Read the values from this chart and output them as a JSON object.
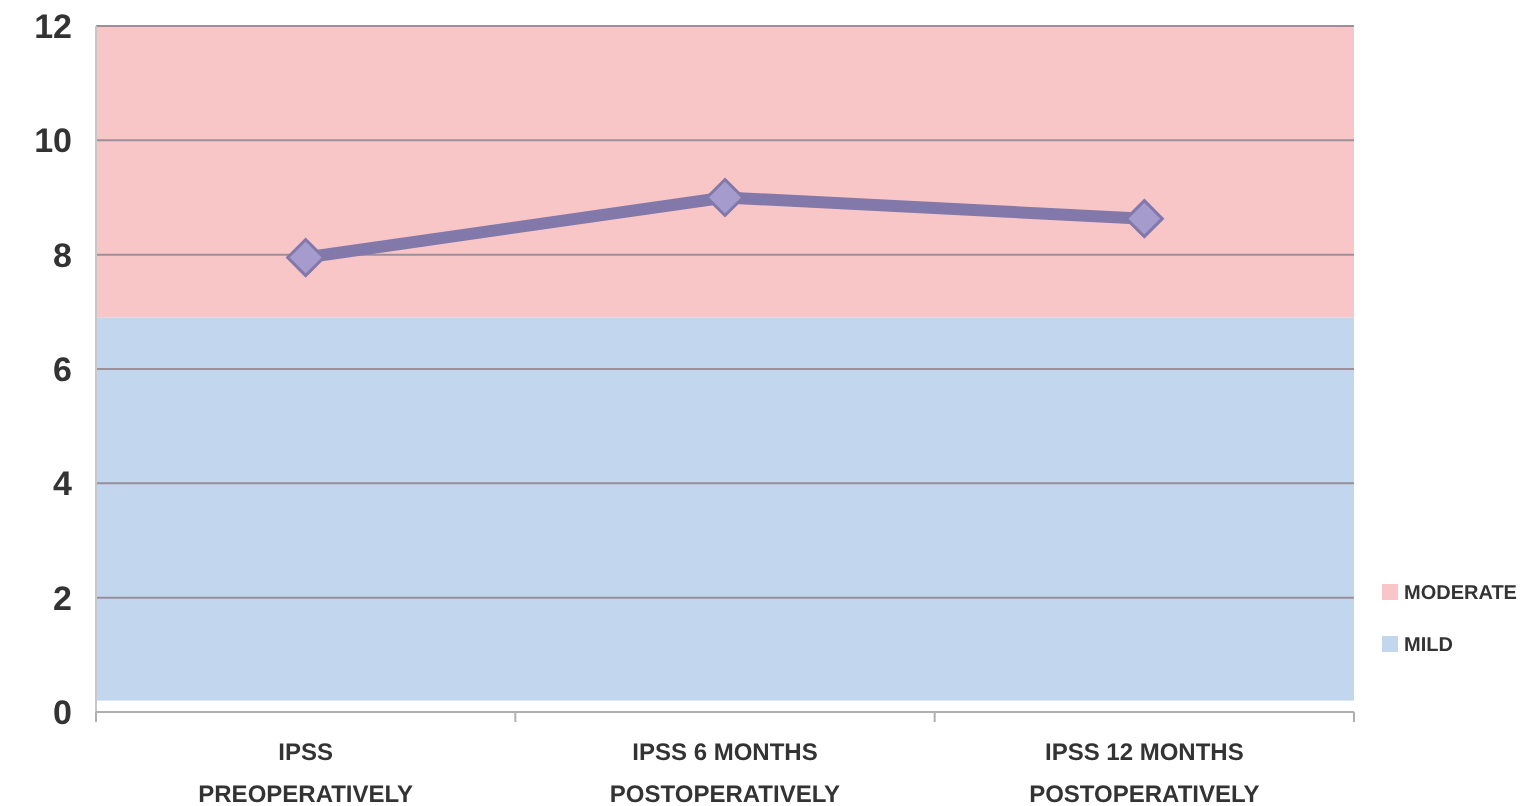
{
  "chart_data": {
    "type": "line",
    "categories": [
      "IPSS PREOPERATIVELY",
      "IPSS 6 MONTHS POSTOPERATIVELY",
      "IPSS 12 MONTHS POSTOPERATIVELY"
    ],
    "series": [
      {
        "color": "#8278aa",
        "values": [
          7.95,
          9.0,
          8.63
        ]
      }
    ],
    "ylim": [
      0,
      12
    ],
    "yticks": [
      0,
      2,
      4,
      6,
      8,
      10,
      12
    ],
    "grid": "y",
    "marker": "diamond",
    "line_style": "solid",
    "legend": "bottom right",
    "bands": [
      {
        "axis": "y",
        "from": 6.9,
        "to": 12,
        "label": "MODERATE",
        "color": "#f9c6c8"
      },
      {
        "axis": "y",
        "from": 0.2,
        "to": 6.9,
        "label": "MILD",
        "color": "#c2d6ee"
      }
    ]
  }
}
